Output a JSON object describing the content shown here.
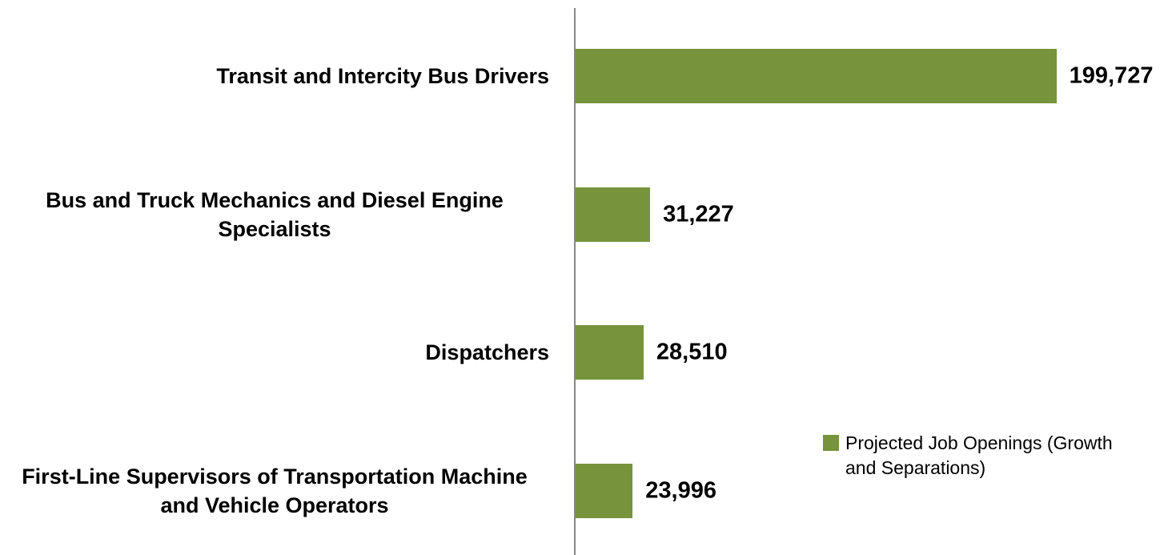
{
  "chart_data": {
    "type": "bar",
    "orientation": "horizontal",
    "categories": [
      "Transit and Intercity Bus Drivers",
      "Bus and Truck Mechanics and Diesel Engine Specialists",
      "Dispatchers",
      "First-Line Supervisors of Transportation Machine and Vehicle Operators"
    ],
    "series": [
      {
        "name": "Projected Job Openings (Growth and Separations)",
        "color": "#77933c",
        "values": [
          199727,
          31227,
          28510,
          23996
        ],
        "value_labels": [
          "199,727",
          "31,227",
          "28,510",
          "23,996"
        ]
      }
    ],
    "xlim": [
      0,
      240000
    ],
    "legend": "right"
  }
}
